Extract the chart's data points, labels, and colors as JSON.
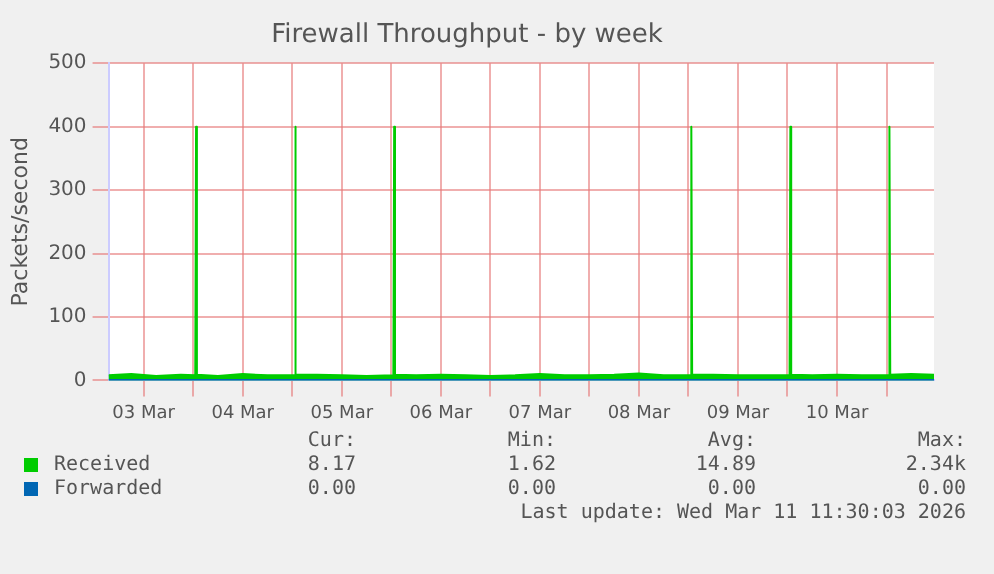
{
  "chart_data": {
    "type": "area",
    "title": "Firewall Throughput - by week",
    "ylabel": "Packets/second",
    "xlim": [
      "2026-03-03T03:30",
      "2026-03-11T11:30"
    ],
    "xticks": [
      {
        "value": "2026-03-03T12:00",
        "label": "03 Mar"
      },
      {
        "value": "2026-03-04T00:00",
        "label": null
      },
      {
        "value": "2026-03-04T12:00",
        "label": "04 Mar"
      },
      {
        "value": "2026-03-05T00:00",
        "label": null
      },
      {
        "value": "2026-03-05T12:00",
        "label": "05 Mar"
      },
      {
        "value": "2026-03-06T00:00",
        "label": null
      },
      {
        "value": "2026-03-06T12:00",
        "label": "06 Mar"
      },
      {
        "value": "2026-03-07T00:00",
        "label": null
      },
      {
        "value": "2026-03-07T12:00",
        "label": "07 Mar"
      },
      {
        "value": "2026-03-08T00:00",
        "label": null
      },
      {
        "value": "2026-03-08T12:00",
        "label": "08 Mar"
      },
      {
        "value": "2026-03-09T00:00",
        "label": null
      },
      {
        "value": "2026-03-09T12:00",
        "label": "09 Mar"
      },
      {
        "value": "2026-03-10T00:00",
        "label": null
      },
      {
        "value": "2026-03-10T12:00",
        "label": "10 Mar"
      },
      {
        "value": "2026-03-11T00:00",
        "label": null
      }
    ],
    "ylim": [
      0,
      500
    ],
    "yticks": [
      0,
      100,
      200,
      300,
      400,
      500
    ],
    "grid": true,
    "legend": "bottom",
    "x": [
      "2026-03-03T03:30",
      "2026-03-03T09:00",
      "2026-03-03T15:00",
      "2026-03-03T21:00",
      "2026-03-04T00:30",
      "2026-03-04T00:42",
      "2026-03-04T00:54",
      "2026-03-04T06:00",
      "2026-03-04T12:00",
      "2026-03-04T18:00",
      "2026-03-05T00:30",
      "2026-03-05T00:42",
      "2026-03-05T00:54",
      "2026-03-05T06:00",
      "2026-03-05T12:00",
      "2026-03-05T18:00",
      "2026-03-06T00:30",
      "2026-03-06T00:42",
      "2026-03-06T00:54",
      "2026-03-06T06:00",
      "2026-03-06T12:00",
      "2026-03-06T18:00",
      "2026-03-07T00:00",
      "2026-03-07T06:00",
      "2026-03-07T12:00",
      "2026-03-07T18:00",
      "2026-03-08T00:00",
      "2026-03-08T06:00",
      "2026-03-08T12:00",
      "2026-03-08T18:00",
      "2026-03-09T00:30",
      "2026-03-09T00:42",
      "2026-03-09T00:54",
      "2026-03-09T06:00",
      "2026-03-09T12:00",
      "2026-03-09T18:00",
      "2026-03-10T00:30",
      "2026-03-10T00:42",
      "2026-03-10T00:54",
      "2026-03-10T06:00",
      "2026-03-10T12:00",
      "2026-03-10T18:00",
      "2026-03-11T00:30",
      "2026-03-11T00:42",
      "2026-03-11T00:54",
      "2026-03-11T06:00",
      "2026-03-11T11:30"
    ],
    "series": [
      {
        "name": "Received",
        "color": "#00cc00",
        "values": [
          8,
          10,
          7,
          9,
          8,
          400,
          9,
          7,
          10,
          8,
          8,
          400,
          9,
          9,
          8,
          7,
          8,
          400,
          9,
          8,
          9,
          8,
          7,
          8,
          10,
          8,
          8,
          9,
          11,
          8,
          8,
          400,
          9,
          9,
          8,
          8,
          8,
          400,
          9,
          8,
          9,
          8,
          8,
          400,
          9,
          10,
          9
        ]
      },
      {
        "name": "Forwarded",
        "color": "#0066b3",
        "type": "line",
        "values": [
          0,
          0,
          0,
          0,
          0,
          0,
          0,
          0,
          0,
          0,
          0,
          0,
          0,
          0,
          0,
          0,
          0,
          0,
          0,
          0,
          0,
          0,
          0,
          0,
          0,
          0,
          0,
          0,
          0,
          0,
          0,
          0,
          0,
          0,
          0,
          0,
          0,
          0,
          0,
          0,
          0,
          0,
          0,
          0,
          0,
          0,
          0
        ]
      }
    ],
    "annotations": [
      "Cur:",
      "Min:",
      "Avg:",
      "Max:",
      "8.17",
      "1.62",
      "14.89",
      "2.34k",
      "0.00",
      "0.00",
      "0.00",
      "0.00",
      "Last update: Wed Mar 11 11:30:03 2026"
    ]
  }
}
